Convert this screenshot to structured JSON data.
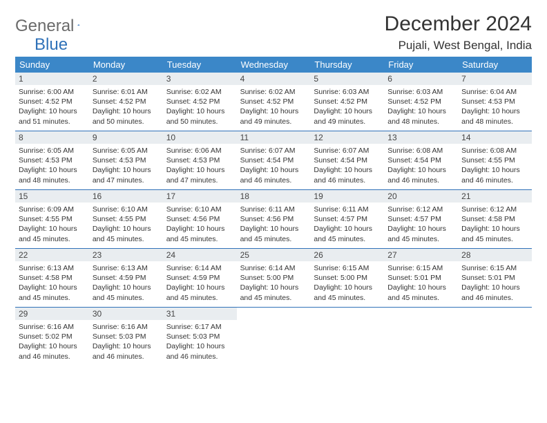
{
  "logo": {
    "part1": "General",
    "part2": "Blue"
  },
  "title": "December 2024",
  "location": "Pujali, West Bengal, India",
  "colors": {
    "header_bg": "#3b87c8",
    "daynum_bg": "#e9edf0",
    "rule": "#2f71b8",
    "logo_gray": "#6a6a6a",
    "logo_blue": "#2f71b8"
  },
  "weekdays": [
    "Sunday",
    "Monday",
    "Tuesday",
    "Wednesday",
    "Thursday",
    "Friday",
    "Saturday"
  ],
  "days": [
    {
      "n": "1",
      "sr": "6:00 AM",
      "ss": "4:52 PM",
      "dh": "10",
      "dm": "51"
    },
    {
      "n": "2",
      "sr": "6:01 AM",
      "ss": "4:52 PM",
      "dh": "10",
      "dm": "50"
    },
    {
      "n": "3",
      "sr": "6:02 AM",
      "ss": "4:52 PM",
      "dh": "10",
      "dm": "50"
    },
    {
      "n": "4",
      "sr": "6:02 AM",
      "ss": "4:52 PM",
      "dh": "10",
      "dm": "49"
    },
    {
      "n": "5",
      "sr": "6:03 AM",
      "ss": "4:52 PM",
      "dh": "10",
      "dm": "49"
    },
    {
      "n": "6",
      "sr": "6:03 AM",
      "ss": "4:52 PM",
      "dh": "10",
      "dm": "48"
    },
    {
      "n": "7",
      "sr": "6:04 AM",
      "ss": "4:53 PM",
      "dh": "10",
      "dm": "48"
    },
    {
      "n": "8",
      "sr": "6:05 AM",
      "ss": "4:53 PM",
      "dh": "10",
      "dm": "48"
    },
    {
      "n": "9",
      "sr": "6:05 AM",
      "ss": "4:53 PM",
      "dh": "10",
      "dm": "47"
    },
    {
      "n": "10",
      "sr": "6:06 AM",
      "ss": "4:53 PM",
      "dh": "10",
      "dm": "47"
    },
    {
      "n": "11",
      "sr": "6:07 AM",
      "ss": "4:54 PM",
      "dh": "10",
      "dm": "46"
    },
    {
      "n": "12",
      "sr": "6:07 AM",
      "ss": "4:54 PM",
      "dh": "10",
      "dm": "46"
    },
    {
      "n": "13",
      "sr": "6:08 AM",
      "ss": "4:54 PM",
      "dh": "10",
      "dm": "46"
    },
    {
      "n": "14",
      "sr": "6:08 AM",
      "ss": "4:55 PM",
      "dh": "10",
      "dm": "46"
    },
    {
      "n": "15",
      "sr": "6:09 AM",
      "ss": "4:55 PM",
      "dh": "10",
      "dm": "45"
    },
    {
      "n": "16",
      "sr": "6:10 AM",
      "ss": "4:55 PM",
      "dh": "10",
      "dm": "45"
    },
    {
      "n": "17",
      "sr": "6:10 AM",
      "ss": "4:56 PM",
      "dh": "10",
      "dm": "45"
    },
    {
      "n": "18",
      "sr": "6:11 AM",
      "ss": "4:56 PM",
      "dh": "10",
      "dm": "45"
    },
    {
      "n": "19",
      "sr": "6:11 AM",
      "ss": "4:57 PM",
      "dh": "10",
      "dm": "45"
    },
    {
      "n": "20",
      "sr": "6:12 AM",
      "ss": "4:57 PM",
      "dh": "10",
      "dm": "45"
    },
    {
      "n": "21",
      "sr": "6:12 AM",
      "ss": "4:58 PM",
      "dh": "10",
      "dm": "45"
    },
    {
      "n": "22",
      "sr": "6:13 AM",
      "ss": "4:58 PM",
      "dh": "10",
      "dm": "45"
    },
    {
      "n": "23",
      "sr": "6:13 AM",
      "ss": "4:59 PM",
      "dh": "10",
      "dm": "45"
    },
    {
      "n": "24",
      "sr": "6:14 AM",
      "ss": "4:59 PM",
      "dh": "10",
      "dm": "45"
    },
    {
      "n": "25",
      "sr": "6:14 AM",
      "ss": "5:00 PM",
      "dh": "10",
      "dm": "45"
    },
    {
      "n": "26",
      "sr": "6:15 AM",
      "ss": "5:00 PM",
      "dh": "10",
      "dm": "45"
    },
    {
      "n": "27",
      "sr": "6:15 AM",
      "ss": "5:01 PM",
      "dh": "10",
      "dm": "45"
    },
    {
      "n": "28",
      "sr": "6:15 AM",
      "ss": "5:01 PM",
      "dh": "10",
      "dm": "46"
    },
    {
      "n": "29",
      "sr": "6:16 AM",
      "ss": "5:02 PM",
      "dh": "10",
      "dm": "46"
    },
    {
      "n": "30",
      "sr": "6:16 AM",
      "ss": "5:03 PM",
      "dh": "10",
      "dm": "46"
    },
    {
      "n": "31",
      "sr": "6:17 AM",
      "ss": "5:03 PM",
      "dh": "10",
      "dm": "46"
    }
  ]
}
